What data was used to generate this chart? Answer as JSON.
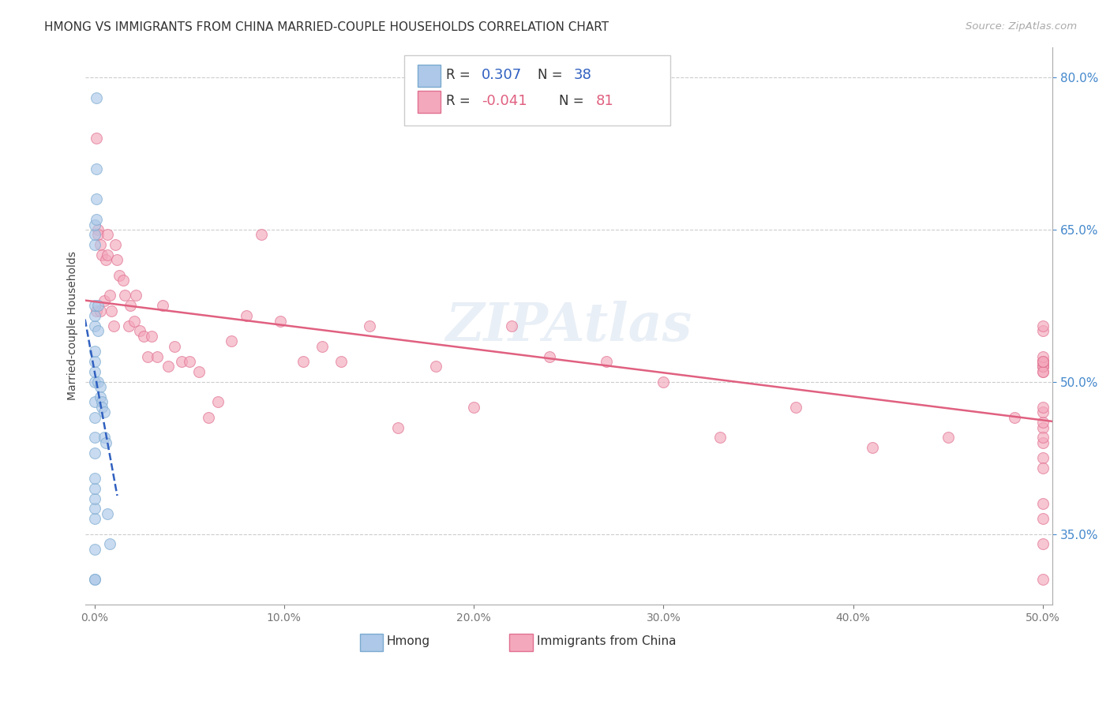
{
  "title": "HMONG VS IMMIGRANTS FROM CHINA MARRIED-COUPLE HOUSEHOLDS CORRELATION CHART",
  "source": "Source: ZipAtlas.com",
  "ylabel": "Married-couple Households",
  "hmong_color": "#adc8e8",
  "china_color": "#f4a8bc",
  "hmong_edge": "#7aaad0",
  "china_edge": "#e07090",
  "trend_hmong_color": "#3060c0",
  "trend_china_color": "#e06080",
  "background_color": "#ffffff",
  "watermark_color": "#b8cce4",
  "watermark_alpha": 0.3,
  "hmong_x": [
    0.0,
    0.0,
    0.0,
    0.0,
    0.0,
    0.0,
    0.0,
    0.0,
    0.0,
    0.0,
    0.0,
    0.0,
    0.0,
    0.0,
    0.0,
    0.0,
    0.0,
    0.0,
    0.0,
    0.0,
    0.0,
    0.0,
    0.001,
    0.001,
    0.001,
    0.001,
    0.002,
    0.002,
    0.002,
    0.003,
    0.003,
    0.004,
    0.004,
    0.005,
    0.005,
    0.006,
    0.007,
    0.008
  ],
  "hmong_y": [
    30.5,
    30.5,
    33.5,
    36.5,
    37.5,
    38.5,
    39.5,
    40.5,
    43.0,
    44.5,
    46.5,
    48.0,
    50.0,
    51.0,
    52.0,
    53.0,
    55.5,
    56.5,
    57.5,
    63.5,
    64.5,
    65.5,
    78.0,
    71.0,
    68.0,
    66.0,
    57.5,
    55.0,
    50.0,
    49.5,
    48.5,
    48.0,
    47.5,
    47.0,
    44.5,
    44.0,
    37.0,
    34.0
  ],
  "china_x": [
    0.001,
    0.001,
    0.002,
    0.002,
    0.003,
    0.003,
    0.004,
    0.005,
    0.006,
    0.007,
    0.007,
    0.008,
    0.009,
    0.01,
    0.011,
    0.012,
    0.013,
    0.015,
    0.016,
    0.018,
    0.019,
    0.021,
    0.022,
    0.024,
    0.026,
    0.028,
    0.03,
    0.033,
    0.036,
    0.039,
    0.042,
    0.046,
    0.05,
    0.055,
    0.06,
    0.065,
    0.072,
    0.08,
    0.088,
    0.098,
    0.11,
    0.12,
    0.13,
    0.145,
    0.16,
    0.18,
    0.2,
    0.22,
    0.24,
    0.27,
    0.3,
    0.33,
    0.37,
    0.41,
    0.45,
    0.485,
    0.5,
    0.5,
    0.5,
    0.5,
    0.5,
    0.5,
    0.5,
    0.5,
    0.5,
    0.5,
    0.5,
    0.5,
    0.5,
    0.5,
    0.5,
    0.5,
    0.5,
    0.5,
    0.5,
    0.5,
    0.5,
    0.5,
    0.5,
    0.5,
    0.5
  ],
  "china_y": [
    74.0,
    57.0,
    65.0,
    64.5,
    63.5,
    57.0,
    62.5,
    58.0,
    62.0,
    64.5,
    62.5,
    58.5,
    57.0,
    55.5,
    63.5,
    62.0,
    60.5,
    60.0,
    58.5,
    55.5,
    57.5,
    56.0,
    58.5,
    55.0,
    54.5,
    52.5,
    54.5,
    52.5,
    57.5,
    51.5,
    53.5,
    52.0,
    52.0,
    51.0,
    46.5,
    48.0,
    54.0,
    56.5,
    64.5,
    56.0,
    52.0,
    53.5,
    52.0,
    55.5,
    45.5,
    51.5,
    47.5,
    55.5,
    52.5,
    52.0,
    50.0,
    44.5,
    47.5,
    43.5,
    44.5,
    46.5,
    52.0,
    51.0,
    51.5,
    45.5,
    42.5,
    44.0,
    52.0,
    51.5,
    38.0,
    51.5,
    44.5,
    52.0,
    30.5,
    34.0,
    36.5,
    41.5,
    46.0,
    47.0,
    47.5,
    51.0,
    52.0,
    52.5,
    55.0,
    55.5,
    52.0
  ],
  "xmin": -0.005,
  "xmax": 0.505,
  "ymin": 28.0,
  "ymax": 83.0,
  "ytick_positions": [
    35.0,
    50.0,
    65.0,
    80.0
  ],
  "ytick_labels": [
    "35.0%",
    "50.0%",
    "65.0%",
    "80.0%"
  ],
  "xtick_positions": [
    0.0,
    0.1,
    0.2,
    0.3,
    0.4,
    0.5
  ],
  "marker_size": 100,
  "marker_alpha": 0.65
}
